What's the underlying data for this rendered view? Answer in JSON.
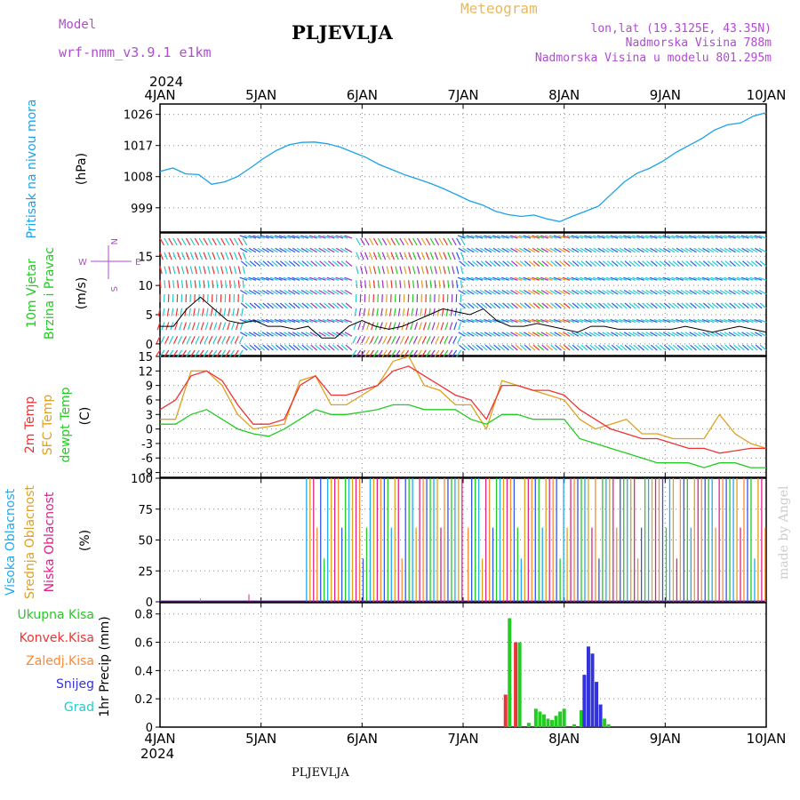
{
  "header": {
    "model_label": "Model",
    "model_name": "wrf-nmm_v3.9.1 e1km",
    "title": "PLJEVLJA",
    "meteogram": "Meteogram",
    "lonlat": "lon,lat (19.3125E, 43.35N)",
    "altitude": "Nadmorska Visina 788m",
    "model_altitude": "Nadmorska Visina u modelu 801.295m"
  },
  "footer": {
    "location": "PLJEVLJA",
    "watermark": "made by Angel"
  },
  "time_axis": {
    "year": "2024",
    "labels": [
      "4JAN",
      "5JAN",
      "6JAN",
      "7JAN",
      "8JAN",
      "9JAN",
      "10JAN"
    ]
  },
  "colors": {
    "pressure": "#1aa3e8",
    "temp2m": "#ee3333",
    "sfc": "#e0a020",
    "dew": "#22cc22",
    "high": "#22aaee",
    "mid": "#e0a020",
    "low": "#dd2288",
    "total": "#22cc22",
    "conv": "#ee3333",
    "frz": "#ff8833",
    "snow": "#3333dd",
    "grad": "#22cccc"
  },
  "chart_data": [
    {
      "type": "line",
      "ylabel_left": "Pritisak na nivou mora",
      "ylabel": "(hPa)",
      "ylim": [
        992,
        1029
      ],
      "yticks": [
        999,
        1008,
        1017,
        1026
      ],
      "series": [
        {
          "values": [
            1009.5,
            1010.5,
            1008.8,
            1008.6,
            1005.8,
            1006.5,
            1008.0,
            1010.5,
            1013.2,
            1015.5,
            1017.2,
            1017.9,
            1018.0,
            1017.5,
            1016.5,
            1015.0,
            1013.5,
            1011.5,
            1010.0,
            1008.5,
            1007.3,
            1006.0,
            1004.5,
            1002.8,
            1001.0,
            999.8,
            998.0,
            997.0,
            996.5,
            996.9,
            995.8,
            995.0,
            996.6,
            998.0,
            999.5,
            1003.0,
            1006.5,
            1009.0,
            1010.5,
            1012.5,
            1015.0,
            1017.0,
            1019.0,
            1021.5,
            1023.0,
            1023.5,
            1025.5,
            1026.5
          ]
        }
      ]
    },
    {
      "type": "line",
      "ylabel_left": "10m Vjetar Brzina i Pravac",
      "ylabel": "(m/s)",
      "ylim": [
        -2,
        19
      ],
      "yticks": [
        0,
        5,
        10,
        15
      ],
      "compass": {
        "n": "N",
        "e": "E",
        "w": "W",
        "s": "S"
      },
      "series": [
        {
          "values": [
            3,
            3,
            6,
            8,
            6,
            4,
            3.5,
            4,
            3,
            3,
            2.5,
            3,
            1,
            1,
            3,
            4,
            3,
            2.5,
            3,
            4,
            5,
            6,
            5.5,
            5,
            6,
            4,
            3,
            3,
            3.5,
            3,
            2.5,
            2,
            3,
            3,
            2.5,
            2.5,
            2.5,
            2.5,
            2.5,
            3,
            2.5,
            2,
            2.5,
            3,
            2.5,
            2
          ]
        }
      ]
    },
    {
      "type": "line",
      "ylabel_left": [
        "2m Temp",
        "SFC Temp",
        "dewpt Temp"
      ],
      "ylabel": "(C)",
      "ylim": [
        -10,
        15
      ],
      "yticks": [
        -9,
        -6,
        -3,
        0,
        3,
        6,
        9,
        12,
        15
      ],
      "series": [
        {
          "name": "2m Temp",
          "values": [
            4,
            6,
            11,
            12,
            10,
            5,
            1,
            1,
            2,
            9,
            11,
            7,
            7,
            8,
            9,
            12,
            13,
            11,
            9,
            7,
            6,
            2,
            9,
            9,
            8,
            8,
            7,
            4,
            2,
            0,
            -1,
            -2,
            -2,
            -3,
            -4,
            -4,
            -5,
            -4.5,
            -4,
            -4
          ]
        },
        {
          "name": "SFC Temp",
          "values": [
            2,
            2,
            12,
            12,
            9,
            3,
            0,
            0.5,
            1,
            10,
            11,
            5,
            5,
            7,
            9,
            14,
            15,
            9,
            8,
            5,
            5,
            0,
            10,
            9,
            8,
            7,
            6,
            2,
            0,
            1,
            2,
            -1,
            -1,
            -2,
            -2,
            -2,
            3,
            -1,
            -3,
            -4
          ]
        },
        {
          "name": "dewpt Temp",
          "values": [
            1,
            1,
            3,
            4,
            2,
            0,
            -1,
            -1.5,
            0,
            2,
            4,
            3,
            3,
            3.5,
            4,
            5,
            5,
            4,
            4,
            4,
            2,
            1,
            3,
            3,
            2,
            2,
            2,
            -2,
            -3,
            -4,
            -5,
            -6,
            -7,
            -7,
            -7,
            -8,
            -7,
            -7,
            -8,
            -8
          ]
        }
      ]
    },
    {
      "type": "bar",
      "ylabel_left": [
        "Visoka Oblacnost",
        "Srednja Oblacnost",
        "Niska Oblacnost"
      ],
      "ylabel": "(%)",
      "ylim": [
        0,
        100
      ],
      "yticks": [
        0,
        25,
        50,
        75,
        100
      ]
    },
    {
      "type": "bar",
      "ylabel_left": [
        "Ukupna Kisa",
        "Konvek.Kisa",
        "Zaledj.Kisa",
        "Snijeg",
        "Grad"
      ],
      "ylabel": "1hr Precip (mm)",
      "ylim": [
        0,
        0.88
      ],
      "yticks": [
        0,
        0.2,
        0.4,
        0.6,
        0.8
      ],
      "bars": [
        {
          "t": 3.42,
          "v": 0.23,
          "s": "conv"
        },
        {
          "t": 3.46,
          "v": 0.77,
          "s": "total"
        },
        {
          "t": 3.52,
          "v": 0.6,
          "s": "conv"
        },
        {
          "t": 3.56,
          "v": 0.6,
          "s": "total"
        },
        {
          "t": 3.65,
          "v": 0.03,
          "s": "total"
        },
        {
          "t": 3.72,
          "v": 0.13,
          "s": "total"
        },
        {
          "t": 3.76,
          "v": 0.11,
          "s": "total"
        },
        {
          "t": 3.8,
          "v": 0.09,
          "s": "total"
        },
        {
          "t": 3.84,
          "v": 0.06,
          "s": "total"
        },
        {
          "t": 3.88,
          "v": 0.05,
          "s": "total"
        },
        {
          "t": 3.92,
          "v": 0.08,
          "s": "total"
        },
        {
          "t": 3.96,
          "v": 0.11,
          "s": "total"
        },
        {
          "t": 4.0,
          "v": 0.13,
          "s": "total"
        },
        {
          "t": 4.1,
          "v": 0.02,
          "s": "total"
        },
        {
          "t": 4.17,
          "v": 0.12,
          "s": "total"
        },
        {
          "t": 4.2,
          "v": 0.37,
          "s": "snow"
        },
        {
          "t": 4.24,
          "v": 0.57,
          "s": "snow"
        },
        {
          "t": 4.28,
          "v": 0.52,
          "s": "snow"
        },
        {
          "t": 4.32,
          "v": 0.32,
          "s": "snow"
        },
        {
          "t": 4.36,
          "v": 0.16,
          "s": "snow"
        },
        {
          "t": 4.4,
          "v": 0.06,
          "s": "total"
        },
        {
          "t": 4.44,
          "v": 0.02,
          "s": "total"
        }
      ]
    }
  ]
}
